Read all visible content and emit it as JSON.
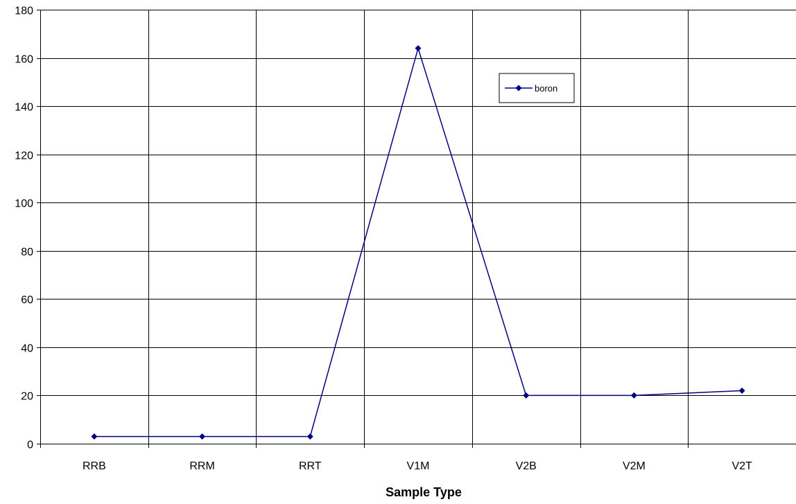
{
  "chart_data": {
    "type": "line",
    "title": "",
    "xlabel": "Sample Type",
    "ylabel": "",
    "categories": [
      "RRB",
      "RRM",
      "RRT",
      "V1M",
      "V2B",
      "V2M",
      "V2T"
    ],
    "ylim": [
      0,
      180
    ],
    "yticks": [
      0,
      20,
      40,
      60,
      80,
      100,
      120,
      140,
      160,
      180
    ],
    "grid": true,
    "legend_position": "upper-right",
    "series": [
      {
        "name": "boron",
        "color": "#000080",
        "marker": "diamond",
        "values": [
          3,
          3,
          3,
          164,
          20,
          20,
          22
        ]
      }
    ]
  }
}
